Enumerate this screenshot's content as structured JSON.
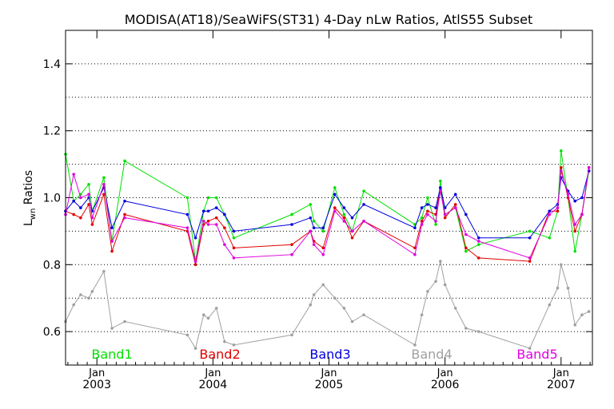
{
  "chart_data": {
    "type": "line",
    "title": "MODISA(AT18)/SeaWiFS(ST31) 4-Day nLw Ratios, AtlS55 Subset",
    "ylabel_main": "L",
    "ylabel_sub": "wn",
    "ylabel_rest": " Ratios",
    "xlabel": "",
    "ylim": [
      0.5,
      1.5
    ],
    "yticks": [
      0.6,
      0.8,
      1.0,
      1.2,
      1.4
    ],
    "ytick_labels": [
      "0.6",
      "0.8",
      "1.0",
      "1.2",
      "1.4"
    ],
    "xlim": [
      2002.73,
      2007.27
    ],
    "grid": true,
    "xticks": [
      {
        "x": 2003.0,
        "month": "Jan",
        "year": "2003"
      },
      {
        "x": 2004.0,
        "month": "Jan",
        "year": "2004"
      },
      {
        "x": 2005.0,
        "month": "Jan",
        "year": "2005"
      },
      {
        "x": 2006.0,
        "month": "Jan",
        "year": "2006"
      },
      {
        "x": 2007.0,
        "month": "Jan",
        "year": "2007"
      }
    ],
    "legend_placement": "bottom",
    "series": [
      {
        "name": "Band1",
        "color": "#00e000",
        "x": [
          2002.73,
          2002.8,
          2002.86,
          2002.93,
          2002.96,
          2003.06,
          2003.13,
          2003.24,
          2003.78,
          2003.85,
          2003.92,
          2003.96,
          2004.03,
          2004.1,
          2004.18,
          2004.68,
          2004.84,
          2004.87,
          2004.95,
          2005.05,
          2005.13,
          2005.2,
          2005.3,
          2005.74,
          2005.8,
          2005.85,
          2005.92,
          2005.96,
          2006.0,
          2006.09,
          2006.18,
          2006.29,
          2006.73,
          2006.9,
          2006.97,
          2007.0,
          2007.06,
          2007.12,
          2007.18,
          2007.24
        ],
        "y": [
          1.13,
          0.99,
          1.01,
          1.04,
          0.96,
          1.06,
          0.87,
          1.11,
          1.0,
          0.81,
          0.96,
          1.0,
          1.0,
          0.95,
          0.88,
          0.95,
          0.98,
          0.93,
          0.9,
          1.03,
          0.95,
          0.9,
          1.02,
          0.92,
          0.94,
          1.0,
          0.92,
          1.05,
          0.95,
          0.97,
          0.84,
          0.86,
          0.9,
          0.88,
          0.96,
          1.14,
          1.0,
          0.84,
          0.95,
          1.08
        ]
      },
      {
        "name": "Band2",
        "color": "#e00000",
        "x": [
          2002.73,
          2002.8,
          2002.86,
          2002.93,
          2002.96,
          2003.06,
          2003.13,
          2003.24,
          2003.78,
          2003.85,
          2003.92,
          2003.96,
          2004.03,
          2004.1,
          2004.18,
          2004.68,
          2004.84,
          2004.87,
          2004.95,
          2005.05,
          2005.13,
          2005.2,
          2005.3,
          2005.74,
          2005.8,
          2005.85,
          2005.92,
          2005.96,
          2006.0,
          2006.09,
          2006.18,
          2006.29,
          2006.73,
          2006.9,
          2006.97,
          2007.0,
          2007.06,
          2007.12,
          2007.18,
          2007.24
        ],
        "y": [
          0.96,
          0.95,
          0.94,
          0.98,
          0.92,
          1.01,
          0.84,
          0.95,
          0.9,
          0.8,
          0.92,
          0.93,
          0.94,
          0.91,
          0.85,
          0.86,
          0.9,
          0.87,
          0.85,
          0.97,
          0.94,
          0.88,
          0.93,
          0.85,
          0.93,
          0.96,
          0.95,
          1.03,
          0.94,
          0.98,
          0.85,
          0.82,
          0.81,
          0.96,
          0.96,
          1.09,
          1.0,
          0.9,
          0.95,
          1.09
        ]
      },
      {
        "name": "Band3",
        "color": "#0000e0",
        "x": [
          2002.73,
          2002.8,
          2002.86,
          2002.93,
          2002.96,
          2003.06,
          2003.13,
          2003.24,
          2003.78,
          2003.85,
          2003.92,
          2003.96,
          2004.03,
          2004.1,
          2004.18,
          2004.68,
          2004.84,
          2004.87,
          2004.95,
          2005.05,
          2005.13,
          2005.2,
          2005.3,
          2005.74,
          2005.8,
          2005.85,
          2005.92,
          2005.96,
          2006.0,
          2006.09,
          2006.18,
          2006.29,
          2006.73,
          2006.9,
          2006.97,
          2007.0,
          2007.06,
          2007.12,
          2007.18,
          2007.24
        ],
        "y": [
          0.96,
          0.99,
          0.97,
          1.0,
          0.96,
          1.03,
          0.91,
          0.99,
          0.95,
          0.88,
          0.96,
          0.96,
          0.97,
          0.95,
          0.9,
          0.92,
          0.94,
          0.91,
          0.91,
          1.01,
          0.97,
          0.94,
          0.98,
          0.91,
          0.97,
          0.98,
          0.97,
          1.03,
          0.97,
          1.01,
          0.95,
          0.88,
          0.88,
          0.96,
          0.98,
          1.06,
          1.02,
          0.99,
          1.0,
          1.08
        ]
      },
      {
        "name": "Band4",
        "color": "#a0a0a0",
        "x": [
          2002.73,
          2002.8,
          2002.86,
          2002.93,
          2002.96,
          2003.06,
          2003.13,
          2003.24,
          2003.78,
          2003.85,
          2003.92,
          2003.96,
          2004.03,
          2004.1,
          2004.18,
          2004.68,
          2004.84,
          2004.87,
          2004.95,
          2005.05,
          2005.13,
          2005.2,
          2005.3,
          2005.74,
          2005.8,
          2005.85,
          2005.92,
          2005.96,
          2006.0,
          2006.09,
          2006.18,
          2006.29,
          2006.73,
          2006.9,
          2006.97,
          2007.0,
          2007.06,
          2007.12,
          2007.18,
          2007.24
        ],
        "y": [
          0.63,
          0.68,
          0.71,
          0.7,
          0.72,
          0.78,
          0.61,
          0.63,
          0.59,
          0.55,
          0.65,
          0.64,
          0.67,
          0.57,
          0.56,
          0.59,
          0.68,
          0.71,
          0.74,
          0.7,
          0.67,
          0.63,
          0.65,
          0.56,
          0.65,
          0.72,
          0.75,
          0.81,
          0.74,
          0.67,
          0.61,
          0.6,
          0.55,
          0.68,
          0.73,
          0.8,
          0.73,
          0.62,
          0.65,
          0.66
        ]
      },
      {
        "name": "Band5",
        "color": "#e000e0",
        "x": [
          2002.73,
          2002.8,
          2002.86,
          2002.93,
          2002.96,
          2003.06,
          2003.13,
          2003.24,
          2003.78,
          2003.85,
          2003.92,
          2003.96,
          2004.03,
          2004.1,
          2004.18,
          2004.68,
          2004.84,
          2004.87,
          2004.95,
          2005.05,
          2005.13,
          2005.2,
          2005.3,
          2005.74,
          2005.8,
          2005.85,
          2005.92,
          2005.96,
          2006.0,
          2006.09,
          2006.18,
          2006.29,
          2006.73,
          2006.9,
          2006.97,
          2007.0,
          2007.06,
          2007.12,
          2007.18,
          2007.24
        ],
        "y": [
          0.95,
          1.07,
          1.0,
          1.01,
          0.94,
          1.04,
          0.87,
          0.94,
          0.91,
          0.81,
          0.93,
          0.92,
          0.92,
          0.86,
          0.82,
          0.83,
          0.9,
          0.86,
          0.83,
          0.96,
          0.93,
          0.9,
          0.93,
          0.83,
          0.92,
          0.95,
          0.93,
          1.02,
          0.95,
          0.97,
          0.89,
          0.87,
          0.82,
          0.95,
          0.97,
          1.08,
          1.01,
          0.92,
          0.95,
          1.09
        ]
      }
    ]
  }
}
